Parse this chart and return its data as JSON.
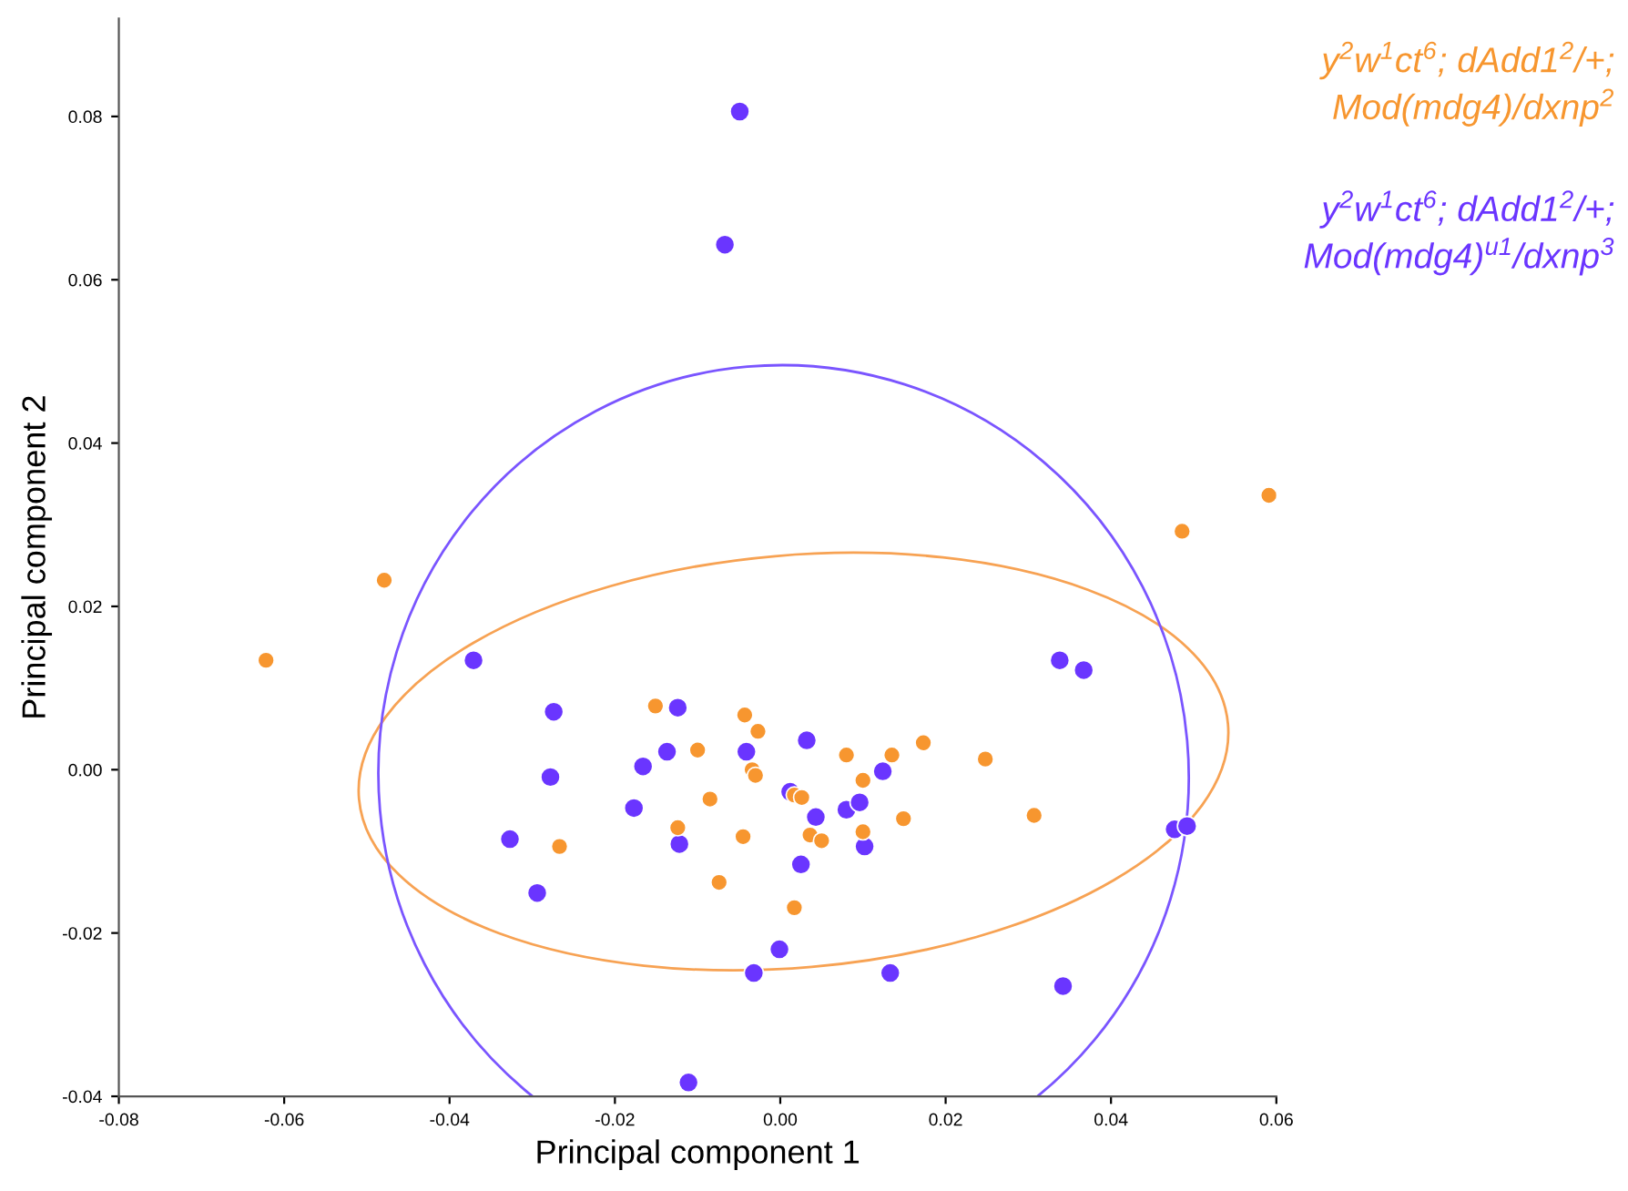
{
  "chart_data": {
    "type": "scatter",
    "xlabel": "Principal component 1",
    "ylabel": "Principal component 2",
    "xlim": [
      -0.08,
      0.06
    ],
    "ylim": [
      -0.04,
      0.092
    ],
    "xticks": [
      {
        "value": -0.08,
        "label": "-0.08"
      },
      {
        "value": -0.06,
        "label": "-0.06"
      },
      {
        "value": -0.04,
        "label": "-0.04"
      },
      {
        "value": -0.02,
        "label": "-0.02"
      },
      {
        "value": 0,
        "label": "0.00"
      },
      {
        "value": 0.02,
        "label": "0.02"
      },
      {
        "value": 0.04,
        "label": "0.04"
      },
      {
        "value": 0.06,
        "label": "0.06"
      }
    ],
    "yticks": [
      {
        "value": -0.04,
        "label": "-0.04"
      },
      {
        "value": -0.02,
        "label": "-0.02"
      },
      {
        "value": 0,
        "label": "0.00"
      },
      {
        "value": 0.02,
        "label": "0.02"
      },
      {
        "value": 0.04,
        "label": "0.04"
      },
      {
        "value": 0.06,
        "label": "0.06"
      },
      {
        "value": 0.08,
        "label": "0.08"
      }
    ],
    "grid": false,
    "marker": "circle",
    "series": [
      {
        "name": "y$^{2}$w$^{1}$ct$^{6}$; dAdd1$^{2}$/+;\nMod(mdg4)/dxnp$^{2}$",
        "color": "#f7962f",
        "x": [
          -0.0622,
          -0.0479,
          -0.0267,
          -0.0151,
          -0.01,
          -0.0124,
          -0.0085,
          -0.0074,
          -0.0043,
          -0.0027,
          -0.0034,
          -0.003,
          -0.0045,
          0.0017,
          0.0026,
          0.0017,
          0.0036,
          0.005,
          0.008,
          0.01,
          0.01,
          0.0135,
          0.0149,
          0.0173,
          0.0248,
          0.0307,
          0.0486,
          0.0591
        ],
        "values": [
          0.0134,
          0.0232,
          -0.0094,
          0.0078,
          0.0024,
          -0.0071,
          -0.0036,
          -0.0138,
          0.0067,
          0.0047,
          0.0,
          -0.0007,
          -0.0082,
          -0.0031,
          -0.0034,
          -0.0169,
          -0.008,
          -0.0087,
          0.0018,
          -0.0013,
          -0.0076,
          0.0018,
          -0.006,
          0.0033,
          0.0013,
          -0.0056,
          0.0292,
          0.0336
        ]
      },
      {
        "name": "y$^{2}$w$^{1}$ct$^{6}$; dAdd1$^{2}$/+;\nMod(mdg4)$^{u1}$/dxnp$^{3}$",
        "color": "#6a35ff",
        "x": [
          -0.0049,
          -0.0067,
          -0.0371,
          -0.0274,
          -0.0278,
          -0.0327,
          -0.0294,
          -0.0166,
          -0.0137,
          -0.0124,
          -0.0122,
          -0.0177,
          -0.0111,
          -0.0041,
          0.0032,
          0.0012,
          0.0043,
          0.008,
          0.0096,
          0.0124,
          0.0102,
          0.0025,
          -0.0001,
          -0.0032,
          0.0133,
          0.0338,
          0.0367,
          0.0342,
          0.0477,
          0.0492
        ],
        "values": [
          0.0806,
          0.0643,
          0.0134,
          0.0071,
          -0.0009,
          -0.0085,
          -0.0151,
          0.0004,
          0.0022,
          0.0076,
          -0.0091,
          -0.0047,
          -0.0383,
          0.0022,
          0.0036,
          -0.0027,
          -0.0058,
          -0.0049,
          -0.004,
          -0.0002,
          -0.0094,
          -0.0116,
          -0.022,
          -0.0249,
          -0.0249,
          0.0134,
          0.0122,
          -0.0265,
          -0.0073,
          -0.0069
        ]
      }
    ]
  }
}
